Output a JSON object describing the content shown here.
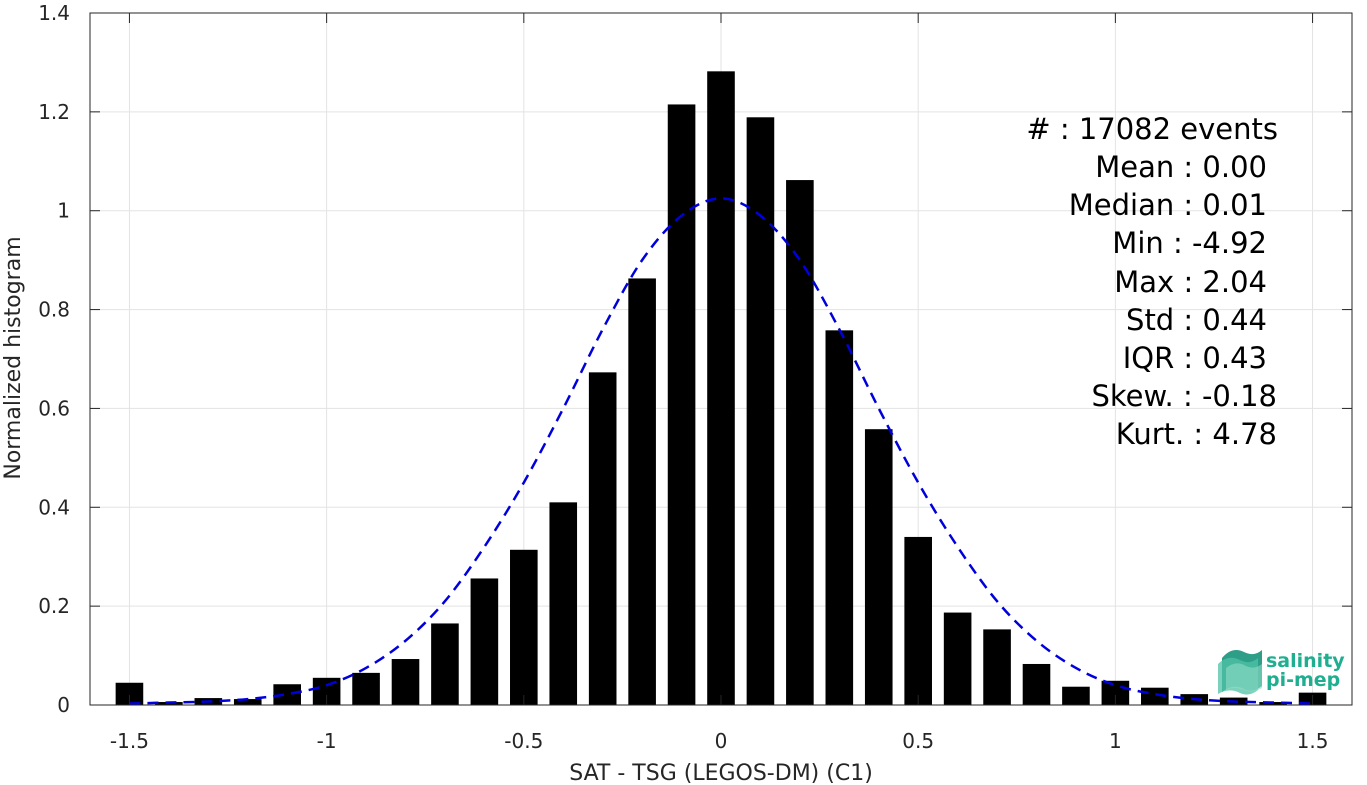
{
  "chart_data": {
    "type": "bar",
    "title": "",
    "xlabel": "SAT - TSG (LEGOS-DM) (C1)",
    "ylabel": "Normalized histogram",
    "xlim": [
      -1.6,
      1.6
    ],
    "ylim": [
      0,
      1.4
    ],
    "xticks": [
      -1.5,
      -1,
      -0.5,
      0,
      0.5,
      1,
      1.5
    ],
    "xtick_labels": [
      "-1.5",
      "-1",
      "-0.5",
      "0",
      "0.5",
      "1",
      "1.5"
    ],
    "yticks": [
      0,
      0.2,
      0.4,
      0.6,
      0.8,
      1,
      1.2,
      1.4
    ],
    "ytick_labels": [
      "0",
      "0.2",
      "0.4",
      "0.6",
      "0.8",
      "1",
      "1.2",
      "1.4"
    ],
    "grid": true,
    "bar_width": 0.07,
    "bar_color": "#000000",
    "bars": {
      "x": [
        -1.5,
        -1.4,
        -1.3,
        -1.2,
        -1.1,
        -1.0,
        -0.9,
        -0.8,
        -0.7,
        -0.6,
        -0.5,
        -0.4,
        -0.3,
        -0.2,
        -0.1,
        0.0,
        0.1,
        0.2,
        0.3,
        0.4,
        0.5,
        0.6,
        0.7,
        0.8,
        0.9,
        1.0,
        1.1,
        1.2,
        1.3,
        1.4,
        1.5
      ],
      "y": [
        0.045,
        0.006,
        0.014,
        0.012,
        0.042,
        0.055,
        0.065,
        0.093,
        0.165,
        0.256,
        0.314,
        0.41,
        0.673,
        0.863,
        1.215,
        1.282,
        1.189,
        1.062,
        0.758,
        0.558,
        0.34,
        0.187,
        0.153,
        0.083,
        0.037,
        0.049,
        0.035,
        0.022,
        0.015,
        0.006,
        0.025
      ]
    },
    "fit_line": {
      "style": "dashed",
      "color": "#0000dd",
      "x": [
        -1.5,
        -1.4,
        -1.3,
        -1.2,
        -1.1,
        -1.0,
        -0.9,
        -0.8,
        -0.7,
        -0.6,
        -0.5,
        -0.4,
        -0.3,
        -0.2,
        -0.1,
        0.0,
        0.1,
        0.2,
        0.3,
        0.4,
        0.5,
        0.6,
        0.7,
        0.8,
        0.9,
        1.0,
        1.1,
        1.2,
        1.3,
        1.4,
        1.5
      ],
      "y": [
        0.003,
        0.005,
        0.007,
        0.012,
        0.022,
        0.04,
        0.075,
        0.13,
        0.21,
        0.32,
        0.45,
        0.6,
        0.76,
        0.9,
        0.99,
        1.025,
        0.99,
        0.9,
        0.76,
        0.6,
        0.45,
        0.32,
        0.21,
        0.13,
        0.075,
        0.04,
        0.022,
        0.012,
        0.007,
        0.005,
        0.003
      ]
    },
    "annotation_lines": [
      "#  : 17082 events",
      "Mean : 0.00",
      "Median : 0.01",
      "Min : -4.92",
      "Max : 2.04",
      "Std : 0.44",
      "IQR : 0.43",
      "Skew. : -0.18",
      "Kurt. : 4.78"
    ],
    "logo": {
      "line1": "salinity",
      "line2": "pi-mep"
    }
  }
}
